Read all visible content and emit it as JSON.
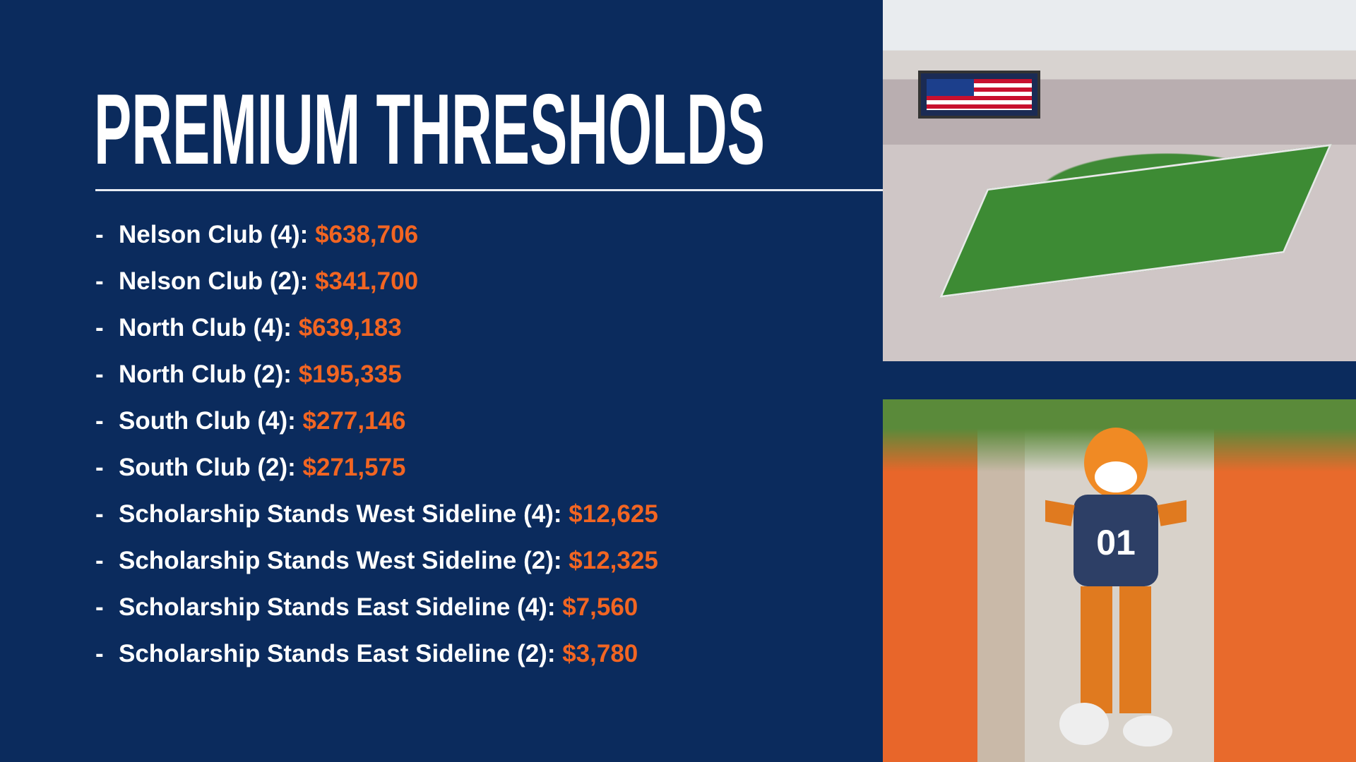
{
  "title": "PREMIUM THRESHOLDS",
  "colors": {
    "background": "#0b2b5d",
    "text": "#ffffff",
    "accent": "#f26522"
  },
  "items": [
    {
      "bullet": "-",
      "label": "Nelson Club (4):",
      "amount": "$638,706"
    },
    {
      "bullet": "-",
      "label": "Nelson Club (2):",
      "amount": "$341,700"
    },
    {
      "bullet": "-",
      "label": "North Club (4):",
      "amount": "$639,183"
    },
    {
      "bullet": "-",
      "label": "North Club (2):",
      "amount": "$195,335"
    },
    {
      "bullet": "-",
      "label": "South Club (4):",
      "amount": "$277,146"
    },
    {
      "bullet": "-",
      "label": "South Club (2):",
      "amount": "$271,575"
    },
    {
      "bullet": "-",
      "label": "Scholarship Stands West Sideline (4):",
      "amount": "$12,625"
    },
    {
      "bullet": "-",
      "label": "Scholarship Stands West Sideline (2):",
      "amount": "$12,325"
    },
    {
      "bullet": "-",
      "label": "Scholarship Stands East Sideline (4):",
      "amount": "$7,560"
    },
    {
      "bullet": "-",
      "label": "Scholarship Stands East Sideline (2):",
      "amount": "$3,780"
    }
  ],
  "photos": {
    "top": "stadium-aerial-photo",
    "bottom": "tiger-mascot-photo",
    "mascot_jersey": "01"
  }
}
